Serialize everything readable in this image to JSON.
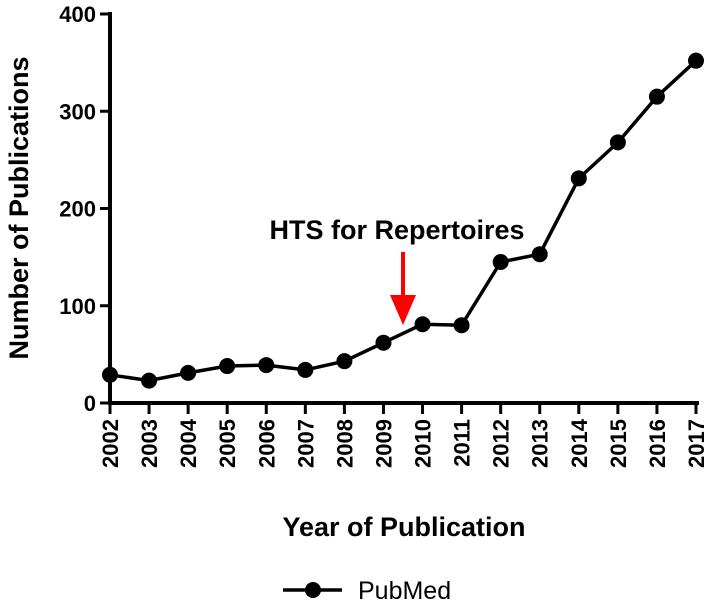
{
  "chart_data": {
    "type": "line",
    "title": "",
    "xlabel": "Year of Publication",
    "ylabel": "Number of Publications",
    "ylim": [
      0,
      400
    ],
    "yticks": [
      0,
      100,
      200,
      300,
      400
    ],
    "x": [
      "2002",
      "2003",
      "2004",
      "2005",
      "2006",
      "2007",
      "2008",
      "2009",
      "2010",
      "2011",
      "2012",
      "2013",
      "2014",
      "2015",
      "2016",
      "2017"
    ],
    "series": [
      {
        "name": "PubMed",
        "color": "#000000",
        "values": [
          29,
          23,
          31,
          38,
          39,
          34,
          43,
          62,
          81,
          80,
          145,
          153,
          231,
          268,
          315,
          352
        ]
      }
    ],
    "annotation": {
      "text": "HTS for Repertoires",
      "x": 2009.5,
      "arrow_color": "#ff0000"
    },
    "legend": {
      "placement": "bottom-center"
    },
    "grid": false
  }
}
